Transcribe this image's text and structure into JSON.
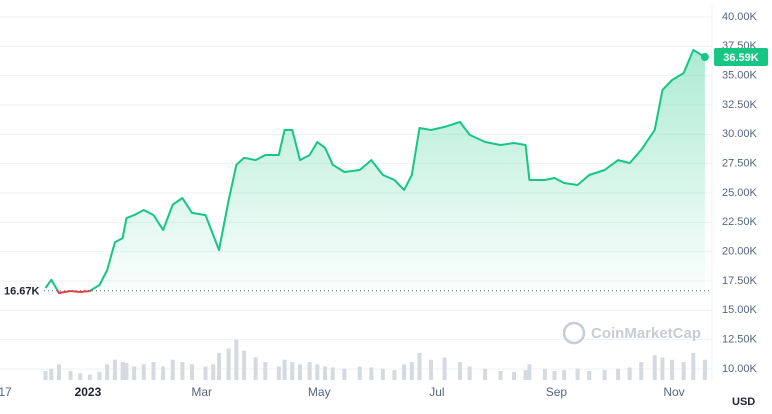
{
  "chart_data": {
    "type": "line",
    "x": [
      -22,
      -19,
      -15,
      -9,
      -4,
      1,
      6,
      10,
      14,
      18,
      20,
      24,
      29,
      34,
      39,
      44,
      49,
      54,
      61,
      65,
      68,
      73,
      77,
      81,
      87,
      92,
      99,
      102,
      106,
      110,
      115,
      119,
      123,
      127,
      133,
      141,
      147,
      153,
      159,
      164,
      168,
      172,
      178,
      185,
      193,
      198,
      206,
      214,
      221,
      227,
      229,
      237,
      242,
      247,
      254,
      260,
      268,
      275,
      281,
      287,
      294,
      298,
      303,
      309,
      314,
      320
    ],
    "series": [
      {
        "name": "Price",
        "color": "#16c784",
        "down_color": "#ea3943",
        "values": [
          16900,
          17600,
          16480,
          16650,
          16560,
          16650,
          17160,
          18440,
          20800,
          21160,
          22870,
          23120,
          23550,
          23120,
          21850,
          24000,
          24570,
          23300,
          23120,
          21420,
          20140,
          24400,
          27400,
          28000,
          27800,
          28240,
          28240,
          30370,
          30370,
          27800,
          28240,
          29350,
          28840,
          27400,
          26790,
          26960,
          27800,
          26530,
          26110,
          25260,
          26530,
          30540,
          30370,
          30630,
          31050,
          29950,
          29350,
          29090,
          29260,
          29090,
          26110,
          26110,
          26280,
          25850,
          25680,
          26530,
          26960,
          27800,
          27550,
          28670,
          30370,
          33780,
          34630,
          35230,
          37190,
          36590
        ]
      },
      {
        "name": "Volume",
        "color": "#d5d9e0",
        "values": [
          20,
          25,
          35,
          20,
          15,
          12,
          18,
          35,
          45,
          40,
          38,
          30,
          35,
          40,
          30,
          45,
          40,
          35,
          30,
          35,
          60,
          70,
          90,
          65,
          50,
          40,
          30,
          45,
          40,
          35,
          40,
          35,
          30,
          28,
          25,
          30,
          28,
          25,
          22,
          35,
          40,
          60,
          45,
          50,
          40,
          30,
          25,
          20,
          18,
          22,
          35,
          25,
          20,
          22,
          25,
          20,
          22,
          25,
          28,
          40,
          55,
          50,
          45,
          40,
          60,
          45
        ]
      }
    ],
    "volume_lim": [
      0,
      100
    ],
    "xlim": [
      -45.6,
      323.7
    ],
    "xticks": [
      {
        "value": -43,
        "label": "17"
      },
      {
        "value": 0,
        "label": "2023"
      },
      {
        "value": 59,
        "label": "Mar"
      },
      {
        "value": 120,
        "label": "May"
      },
      {
        "value": 181,
        "label": "Jul"
      },
      {
        "value": 243,
        "label": "Sep"
      },
      {
        "value": 304,
        "label": "Nov"
      }
    ],
    "ylim": [
      10000,
      40000
    ],
    "yticks": [
      {
        "value": 10000,
        "label": "10.00K"
      },
      {
        "value": 12500,
        "label": "12.50K"
      },
      {
        "value": 15000,
        "label": "15.00K"
      },
      {
        "value": 17500,
        "label": "17.50K"
      },
      {
        "value": 20000,
        "label": "20.00K"
      },
      {
        "value": 22500,
        "label": "22.50K"
      },
      {
        "value": 25000,
        "label": "25.00K"
      },
      {
        "value": 27500,
        "label": "27.50K"
      },
      {
        "value": 30000,
        "label": "30.00K"
      },
      {
        "value": 32500,
        "label": "32.50K"
      },
      {
        "value": 35000,
        "label": "35.00K"
      },
      {
        "value": 37500,
        "label": "37.50K"
      },
      {
        "value": 40000,
        "label": "40.00K"
      }
    ],
    "baseline": {
      "value": 16670,
      "label": "16.67K"
    },
    "last_price": {
      "value": 36590,
      "label": "36.59K"
    },
    "y_unit": "USD",
    "watermark": "CoinMarketCap",
    "grid": true
  }
}
